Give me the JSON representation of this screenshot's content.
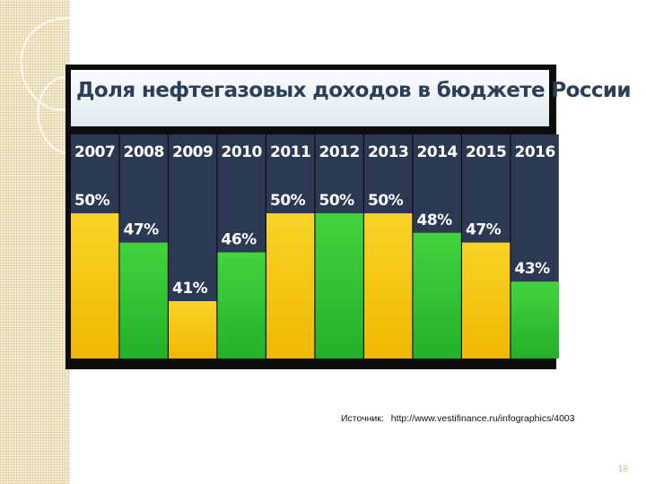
{
  "slide": {
    "source_label": "Источник:",
    "source_url": "http://www.vestifinance.ru/infographics/4003",
    "page_number": "18"
  },
  "chart_data": {
    "type": "bar",
    "title": "Доля нефтегазовых доходов  в бюджете России",
    "categories": [
      "2007",
      "2008",
      "2009",
      "2010",
      "2011",
      "2012",
      "2013",
      "2014",
      "2015",
      "2016"
    ],
    "values": [
      50,
      47,
      41,
      46,
      50,
      50,
      50,
      48,
      47,
      43
    ],
    "value_labels": [
      "50%",
      "47%",
      "41%",
      "46%",
      "50%",
      "50%",
      "50%",
      "48%",
      "47%",
      "43%"
    ],
    "bar_colors": [
      "yellow",
      "green",
      "yellow",
      "green",
      "yellow",
      "green",
      "yellow",
      "green",
      "yellow",
      "green"
    ],
    "colors": {
      "yellow": "#f4c91a",
      "green": "#3fcf3a",
      "column_background": "#2b3a52",
      "title_text": "#2b3f58"
    },
    "ylim": [
      41,
      50
    ],
    "grid": false,
    "legend": "none"
  }
}
